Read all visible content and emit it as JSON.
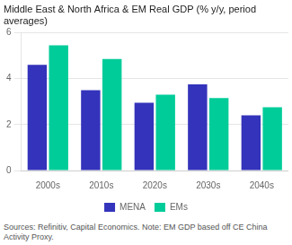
{
  "chart_data": {
    "type": "bar",
    "title": [
      "Middle East & North Africa & EM Real GDP (% y/y, period",
      "averages)"
    ],
    "categories": [
      "2000s",
      "2010s",
      "2020s",
      "2030s",
      "2040s"
    ],
    "series": [
      {
        "name": "MENA",
        "color": "#3333bb",
        "values": [
          4.6,
          3.5,
          2.95,
          3.75,
          2.4
        ]
      },
      {
        "name": "EMs",
        "color": "#00cc99",
        "values": [
          5.45,
          4.85,
          3.3,
          3.15,
          2.75
        ]
      }
    ],
    "ylim": [
      0,
      6
    ],
    "yticks": [
      0,
      2,
      4,
      6
    ],
    "grid": true,
    "legend": "bottom",
    "annotations": [
      "Sources: Refinitiv, Capital Economics. Note: EM GDP based off CE China Activity Proxy."
    ]
  }
}
